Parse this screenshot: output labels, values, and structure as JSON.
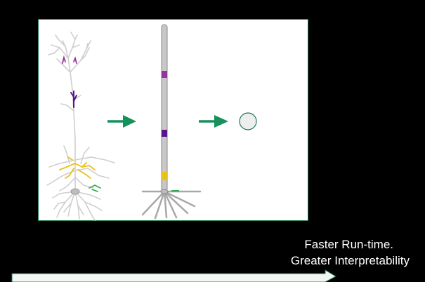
{
  "caption": {
    "line1": "Faster Run-time.",
    "line2": "Greater Interpretability"
  },
  "colors": {
    "background": "#000000",
    "panel": "#ffffff",
    "panel_border": "#1f7a52",
    "arrow": "#15915a",
    "dendrite": "#cfcfcf",
    "magenta": "#9b30a0",
    "purple": "#5a138a",
    "yellow": "#e8c21a",
    "green": "#2ea84a",
    "progress_arrow_fill": "#f2f7f4"
  },
  "icons": [
    "detailed-neuron-icon",
    "simplified-cable-neuron-icon",
    "point-neuron-icon",
    "right-arrow-icon"
  ]
}
